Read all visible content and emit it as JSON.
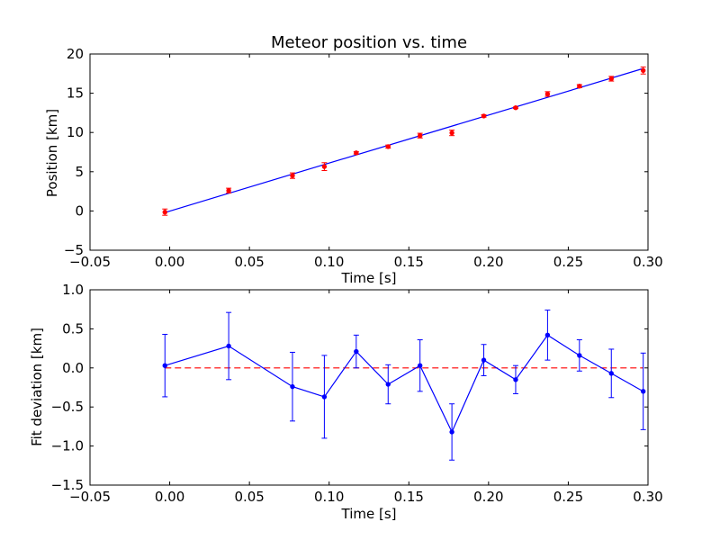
{
  "chart_data": [
    {
      "type": "scatter",
      "title": "Meteor position vs. time",
      "xlabel": "Time [s]",
      "ylabel": "Position [km]",
      "xlim": [
        -0.05,
        0.3
      ],
      "ylim": [
        -5,
        20
      ],
      "xticks": [
        -0.05,
        0.0,
        0.05,
        0.1,
        0.15,
        0.2,
        0.25,
        0.3
      ],
      "xtick_labels": [
        "−0.05",
        "0.00",
        "0.05",
        "0.10",
        "0.15",
        "0.20",
        "0.25",
        "0.30"
      ],
      "yticks": [
        -5,
        0,
        5,
        10,
        15,
        20
      ],
      "ytick_labels": [
        "−5",
        "0",
        "5",
        "10",
        "15",
        "20"
      ],
      "grid": false,
      "series": [
        {
          "kind": "errorbar-points",
          "color": "#ff0000",
          "x": [
            -0.003,
            0.037,
            0.077,
            0.097,
            0.117,
            0.137,
            0.157,
            0.177,
            0.197,
            0.217,
            0.237,
            0.257,
            0.277,
            0.297
          ],
          "y": [
            -0.15,
            2.6,
            4.5,
            5.65,
            7.4,
            8.2,
            9.6,
            9.95,
            12.1,
            13.15,
            14.9,
            15.9,
            16.85,
            17.9
          ],
          "yerr": [
            0.4,
            0.3,
            0.35,
            0.5,
            0.15,
            0.2,
            0.3,
            0.35,
            0.15,
            0.1,
            0.3,
            0.2,
            0.3,
            0.45
          ]
        },
        {
          "kind": "fit-line",
          "color": "#0000ff",
          "x": [
            -0.003,
            0.297
          ],
          "y": [
            -0.2,
            18.15
          ]
        }
      ]
    },
    {
      "type": "line",
      "title": "",
      "xlabel": "Time [s]",
      "ylabel": "Fit deviation [km]",
      "xlim": [
        -0.05,
        0.3
      ],
      "ylim": [
        -1.5,
        1.0
      ],
      "xticks": [
        -0.05,
        0.0,
        0.05,
        0.1,
        0.15,
        0.2,
        0.25,
        0.3
      ],
      "xtick_labels": [
        "−0.05",
        "0.00",
        "0.05",
        "0.10",
        "0.15",
        "0.20",
        "0.25",
        "0.30"
      ],
      "yticks": [
        -1.5,
        -1.0,
        -0.5,
        0.0,
        0.5,
        1.0
      ],
      "ytick_labels": [
        "−1.5",
        "−1.0",
        "−0.5",
        "0.0",
        "0.5",
        "1.0"
      ],
      "grid": false,
      "series": [
        {
          "kind": "errorbar-line",
          "color": "#0000ff",
          "x": [
            -0.003,
            0.037,
            0.077,
            0.097,
            0.117,
            0.137,
            0.157,
            0.177,
            0.197,
            0.217,
            0.237,
            0.257,
            0.277,
            0.297
          ],
          "y": [
            0.03,
            0.28,
            -0.24,
            -0.37,
            0.21,
            -0.21,
            0.03,
            -0.82,
            0.1,
            -0.15,
            0.42,
            0.16,
            -0.07,
            -0.3
          ],
          "yerr": [
            0.4,
            0.43,
            0.44,
            0.53,
            0.21,
            0.25,
            0.33,
            0.36,
            0.2,
            0.18,
            0.32,
            0.2,
            0.31,
            0.49
          ]
        },
        {
          "kind": "reference-line",
          "color": "#ff0000",
          "style": "dashed",
          "x": [
            -0.003,
            0.297
          ],
          "y": [
            0,
            0
          ]
        }
      ]
    }
  ]
}
